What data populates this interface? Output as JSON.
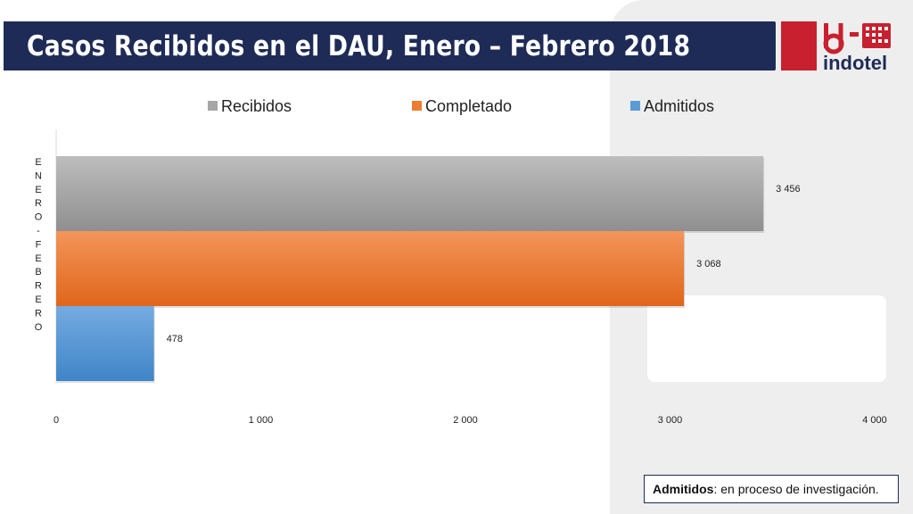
{
  "slide": {
    "title": "Casos Recibidos en el DAU, Enero – Febrero 2018",
    "logo": {
      "mark": "id",
      "name": "indotel",
      "icon": "indotel-logo"
    },
    "note": {
      "term": "Admitidos",
      "text": ": en proceso de investigación."
    }
  },
  "colors": {
    "title_bar": "#1e2b57",
    "logo_red": "#c8202f",
    "recibidos": "#a6a6a6",
    "completado": "#ed7d31",
    "admitidos": "#5b9bd5"
  },
  "chart_data": {
    "type": "bar",
    "orientation": "horizontal",
    "title": "",
    "category_label": "ENERO - FEBRERO",
    "categories": [
      "ENERO - FEBRERO"
    ],
    "series": [
      {
        "name": "Recibidos",
        "values": [
          3456
        ],
        "label": "3 456"
      },
      {
        "name": "Completado",
        "values": [
          3068
        ],
        "label": "3 068"
      },
      {
        "name": "Admitidos",
        "values": [
          478
        ],
        "label": "478"
      }
    ],
    "xlim": [
      0,
      4000
    ],
    "x_ticks": [
      0,
      1000,
      2000,
      3000,
      4000
    ],
    "x_tick_labels": [
      "0",
      "1 000",
      "2 000",
      "3 000",
      "4 000"
    ],
    "grid": false,
    "legend": "top"
  }
}
